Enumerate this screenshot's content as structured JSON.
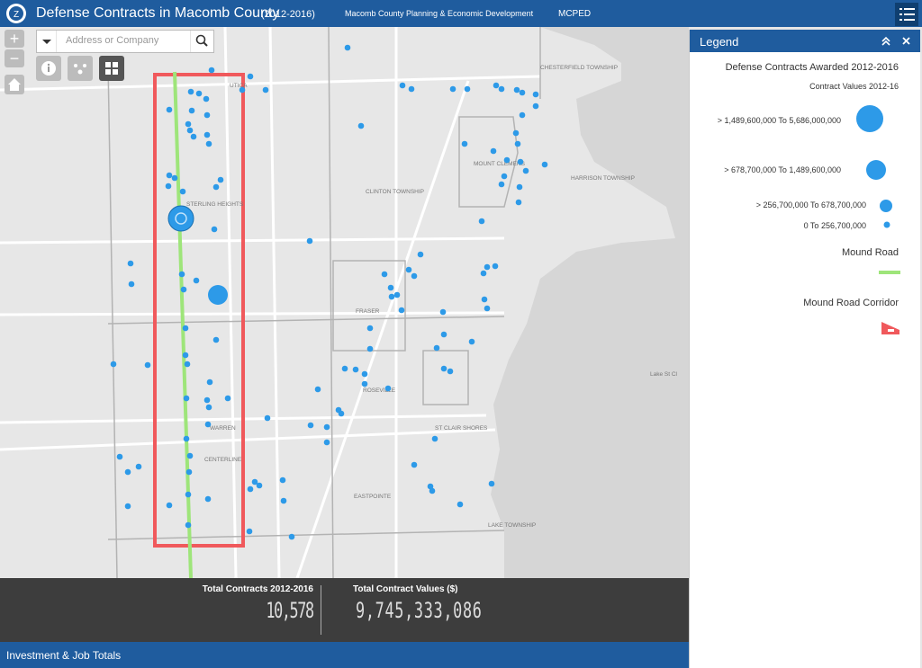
{
  "header": {
    "title": "Defense Contracts in Macomb County",
    "subtitle": "(2012-2016)",
    "links": [
      "Macomb County Planning & Economic Development",
      "MCPED"
    ]
  },
  "search": {
    "placeholder": "Address or Company"
  },
  "zoom": {
    "in": "+",
    "out": "−"
  },
  "map": {
    "labels": [
      "UTICA",
      "CHESTERFIELD TOWNSHIP",
      "MOUNT CLEMENS",
      "HARRISON TOWNSHIP",
      "CLINTON TOWNSHIP",
      "STERLING HEIGHTS",
      "FRASER",
      "ROSEVILLE",
      "WARREN",
      "CENTERLINE",
      "ST CLAIR SHORES",
      "EASTPOINTE",
      "LAKE TOWNSHIP",
      "Lake St Cl"
    ]
  },
  "legend": {
    "title": "Legend",
    "layer_title": "Defense Contracts Awarded 2012-2016",
    "field": "Contract Values 2012-16",
    "classes": [
      "> 1,489,600,000 To 5,686,000,000",
      "> 678,700,000 To 1,489,600,000",
      "> 256,700,000 To 678,700,000",
      "0 To 256,700,000"
    ],
    "lines": [
      "Mound Road",
      "Mound Road Corridor"
    ]
  },
  "stats": [
    {
      "label": "Total Contracts 2012-2016",
      "value": "10,578"
    },
    {
      "label": "Total Contract Values ($)",
      "value": "9,745,333,086"
    }
  ],
  "footer": "Investment & Job Totals"
}
